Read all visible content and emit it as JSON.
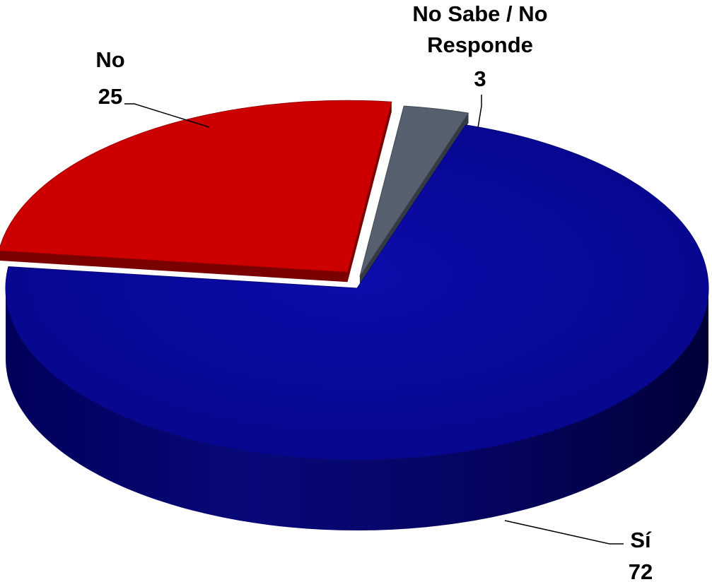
{
  "chart_data": {
    "type": "pie",
    "style": "3d",
    "slices": [
      {
        "label": "Sí",
        "label_lines": [
          "Sí"
        ],
        "value": 72,
        "value_text": "72",
        "color": "#0a0aa0"
      },
      {
        "label": "No",
        "label_lines": [
          "No"
        ],
        "value": 25,
        "value_text": "25",
        "color": "#cc0000"
      },
      {
        "label": "No Sabe / No Responde",
        "label_lines": [
          "No Sabe / No",
          "Responde"
        ],
        "value": 3,
        "value_text": "3",
        "color": "#56606e"
      }
    ]
  }
}
